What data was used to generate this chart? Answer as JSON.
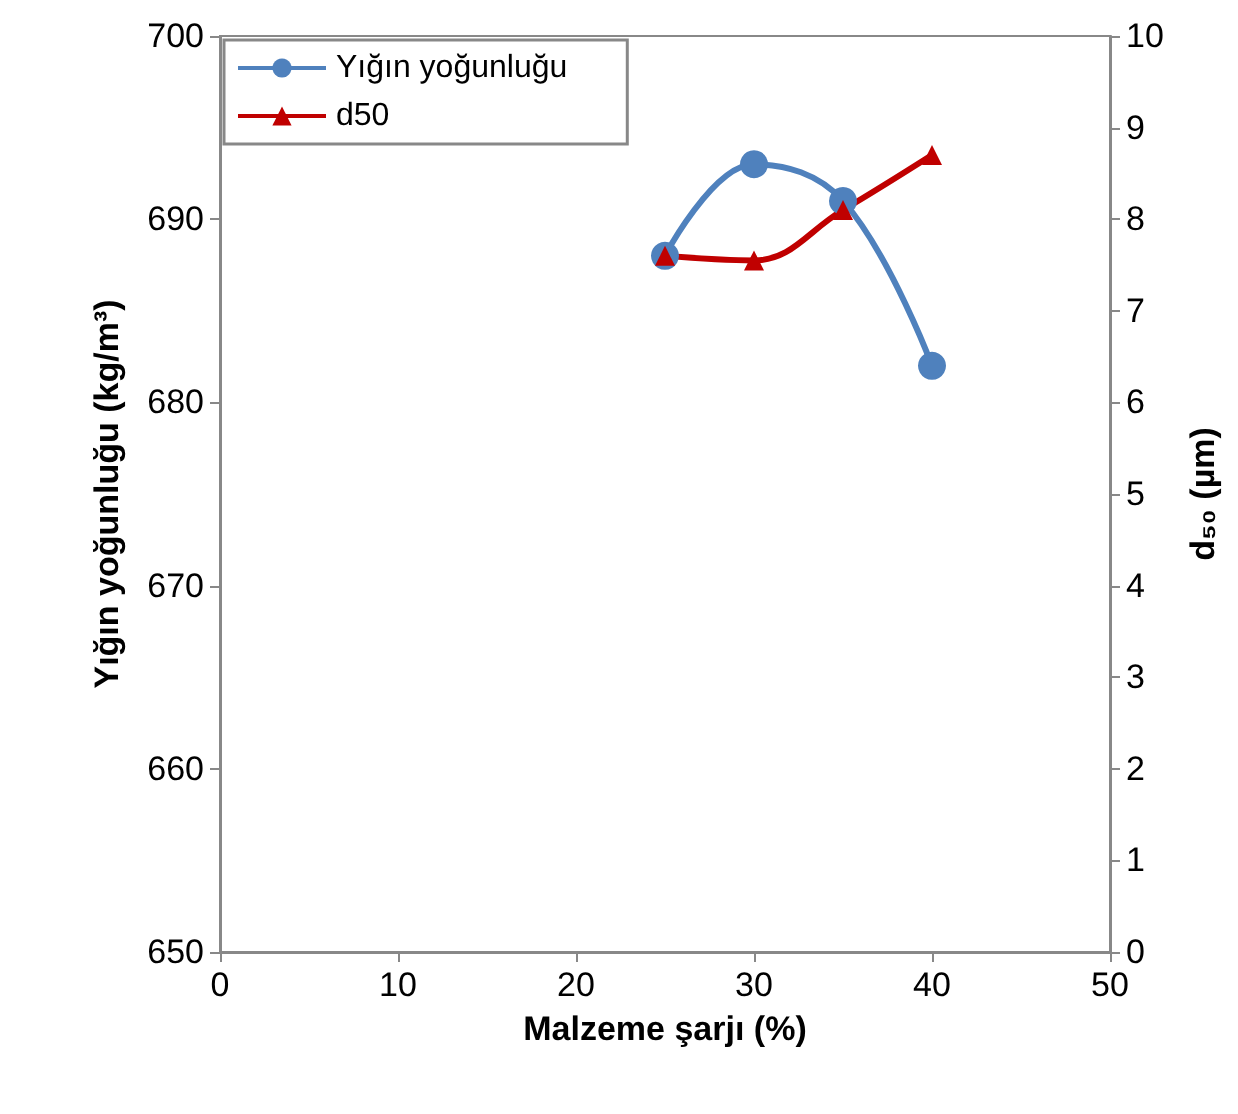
{
  "chart_data": {
    "type": "line",
    "xlabel": "Malzeme şarjı (%)",
    "ylabel": "Yığın yoğunluğu (kg/m³)",
    "y2label": "d₅₀ (µm)",
    "x": [
      25,
      30,
      35,
      40
    ],
    "series": [
      {
        "name": "Yığın yoğunluğu",
        "color": "#4f81bd",
        "marker": "circle",
        "values": [
          688,
          693,
          691,
          682
        ]
      },
      {
        "name": "d50",
        "color": "#c00000",
        "marker": "triangle",
        "axis": "y2",
        "values": [
          7.6,
          7.55,
          8.1,
          8.7
        ]
      }
    ],
    "xlim": [
      0,
      50
    ],
    "xticks": [
      0,
      10,
      20,
      30,
      40,
      50
    ],
    "ylim": [
      650,
      700
    ],
    "yticks": [
      650,
      660,
      670,
      680,
      690,
      700
    ],
    "y2lim": [
      0,
      10
    ],
    "y2ticks": [
      0,
      1,
      2,
      3,
      4,
      5,
      6,
      7,
      8,
      9,
      10
    ],
    "grid": false,
    "legend": "top left"
  }
}
